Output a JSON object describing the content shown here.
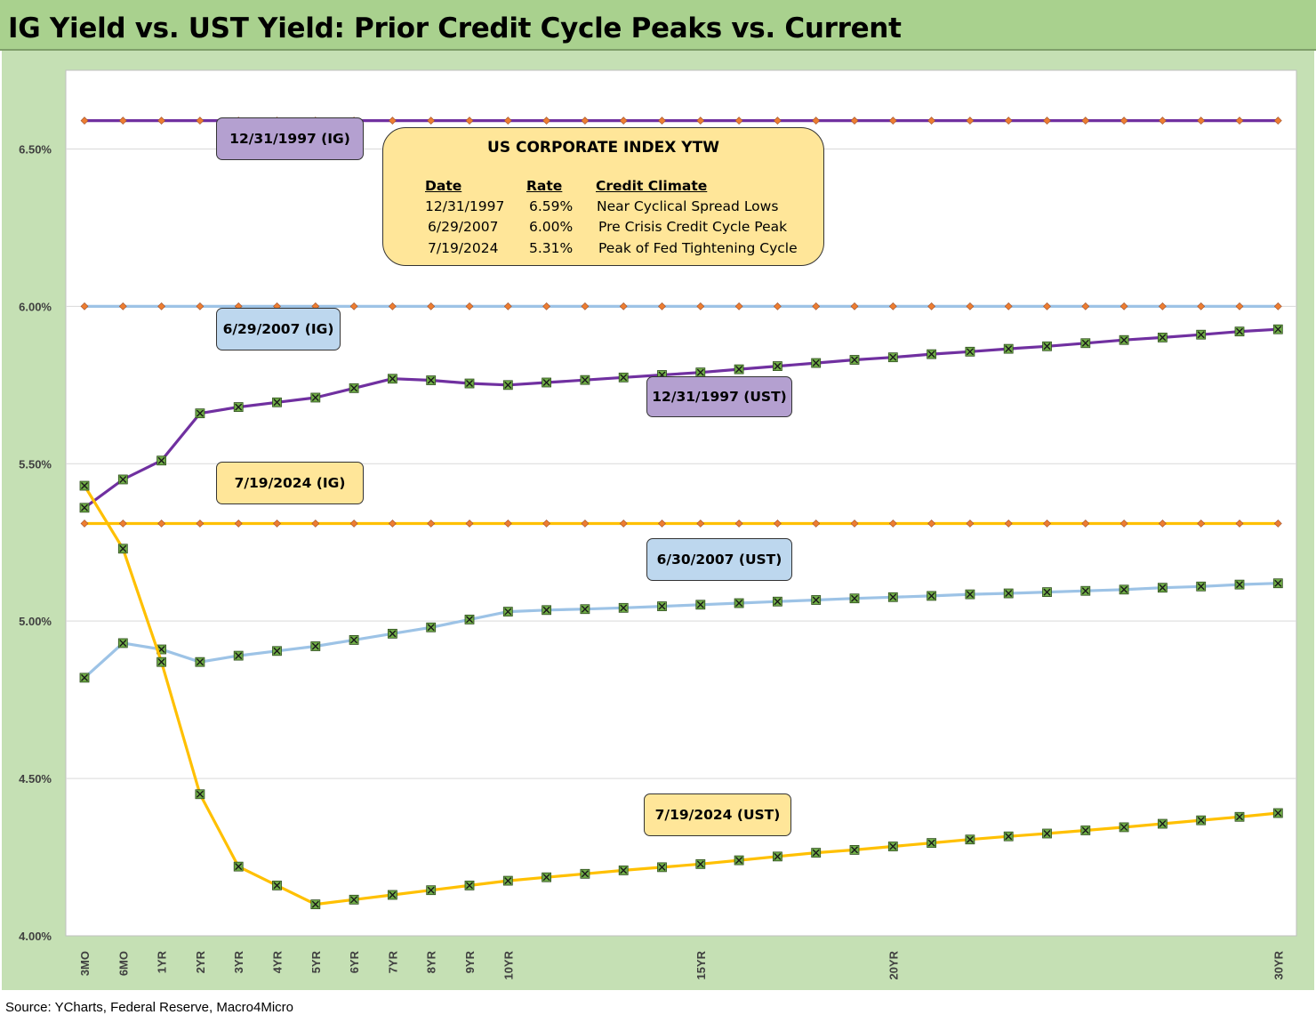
{
  "title": "IG Yield vs. UST Yield: Prior Credit Cycle Peaks vs. Current",
  "source": "Source: YCharts, Federal Reserve, Macro4Micro",
  "info_box": {
    "title": "US CORPORATE INDEX YTW",
    "headers": [
      "Date",
      "Rate",
      "Credit Climate"
    ],
    "rows": [
      [
        "12/31/1997",
        "6.59%",
        "Near Cyclical Spread Lows"
      ],
      [
        "6/29/2007",
        "6.00%",
        "Pre Crisis Credit Cycle Peak"
      ],
      [
        "7/19/2024",
        "5.31%",
        "Peak of Fed Tightening Cycle"
      ]
    ]
  },
  "labels": {
    "ig_1997": "12/31/1997 (IG)",
    "ig_2007": "6/29/2007 (IG)",
    "ig_2024": "7/19/2024 (IG)",
    "ust_1997": "12/31/1997 (UST)",
    "ust_2007": "6/30/2007 (UST)",
    "ust_2024": "7/19/2024 (UST)"
  },
  "colors": {
    "purple": "#7030a0",
    "light_blue": "#9dc3e6",
    "gold": "#ffc000",
    "marker_ig": "#ed7d31",
    "marker_ust": "#70ad47",
    "box_purple": "#b4a0d0",
    "box_blue": "#bdd7ee",
    "box_gold": "#ffe699"
  },
  "chart_data": {
    "type": "line",
    "ylim": [
      4.0,
      6.75
    ],
    "yticks": [
      4.0,
      4.5,
      5.0,
      5.5,
      6.0,
      6.5
    ],
    "ytick_labels": [
      "4.00%",
      "4.50%",
      "5.00%",
      "5.50%",
      "6.00%",
      "6.50%"
    ],
    "x_count": 32,
    "tick_labels": {
      "0": "3MO",
      "1": "6MO",
      "2": "1YR",
      "3": "2YR",
      "4": "3YR",
      "5": "4YR",
      "6": "5YR",
      "7": "6YR",
      "8": "7YR",
      "9": "8YR",
      "10": "9YR",
      "11": "10YR",
      "16": "15YR",
      "21": "20YR",
      "31": "30YR"
    },
    "grid": "horizontal",
    "series": [
      {
        "name": "12/31/1997 (IG)",
        "color": "purple",
        "marker": "diamond",
        "values": [
          6.59,
          6.59,
          6.59,
          6.59,
          6.59,
          6.59,
          6.59,
          6.59,
          6.59,
          6.59,
          6.59,
          6.59,
          6.59,
          6.59,
          6.59,
          6.59,
          6.59,
          6.59,
          6.59,
          6.59,
          6.59,
          6.59,
          6.59,
          6.59,
          6.59,
          6.59,
          6.59,
          6.59,
          6.59,
          6.59,
          6.59,
          6.59
        ]
      },
      {
        "name": "6/29/2007 (IG)",
        "color": "light_blue",
        "marker": "diamond",
        "values": [
          6.0,
          6.0,
          6.0,
          6.0,
          6.0,
          6.0,
          6.0,
          6.0,
          6.0,
          6.0,
          6.0,
          6.0,
          6.0,
          6.0,
          6.0,
          6.0,
          6.0,
          6.0,
          6.0,
          6.0,
          6.0,
          6.0,
          6.0,
          6.0,
          6.0,
          6.0,
          6.0,
          6.0,
          6.0,
          6.0,
          6.0,
          6.0
        ]
      },
      {
        "name": "7/19/2024 (IG)",
        "color": "gold",
        "marker": "diamond",
        "values": [
          5.31,
          5.31,
          5.31,
          5.31,
          5.31,
          5.31,
          5.31,
          5.31,
          5.31,
          5.31,
          5.31,
          5.31,
          5.31,
          5.31,
          5.31,
          5.31,
          5.31,
          5.31,
          5.31,
          5.31,
          5.31,
          5.31,
          5.31,
          5.31,
          5.31,
          5.31,
          5.31,
          5.31,
          5.31,
          5.31,
          5.31,
          5.31
        ]
      },
      {
        "name": "12/31/1997 (UST)",
        "color": "purple",
        "marker": "x-square",
        "values": [
          5.36,
          5.45,
          5.51,
          5.66,
          5.68,
          5.695,
          5.71,
          5.74,
          5.77,
          5.765,
          5.755,
          5.75,
          5.758,
          5.766,
          5.774,
          5.782,
          5.79,
          5.8,
          5.81,
          5.82,
          5.83,
          5.838,
          5.848,
          5.856,
          5.865,
          5.873,
          5.883,
          5.893,
          5.901,
          5.91,
          5.92,
          5.927
        ]
      },
      {
        "name": "6/30/2007 (UST)",
        "color": "light_blue",
        "marker": "x-square",
        "values": [
          4.82,
          4.93,
          4.91,
          4.87,
          4.89,
          4.905,
          4.92,
          4.94,
          4.96,
          4.98,
          5.005,
          5.03,
          5.035,
          5.038,
          5.042,
          5.047,
          5.052,
          5.057,
          5.062,
          5.067,
          5.072,
          5.076,
          5.08,
          5.085,
          5.088,
          5.092,
          5.096,
          5.1,
          5.106,
          5.11,
          5.116,
          5.12
        ]
      },
      {
        "name": "7/19/2024 (UST)",
        "color": "gold",
        "marker": "x-square",
        "values": [
          5.43,
          5.23,
          4.87,
          4.45,
          4.22,
          4.16,
          4.1,
          4.115,
          4.13,
          4.145,
          4.16,
          4.175,
          4.186,
          4.197,
          4.208,
          4.218,
          4.228,
          4.24,
          4.252,
          4.264,
          4.273,
          4.284,
          4.295,
          4.306,
          4.316,
          4.325,
          4.335,
          4.345,
          4.356,
          4.367,
          4.378,
          4.39
        ]
      }
    ]
  }
}
